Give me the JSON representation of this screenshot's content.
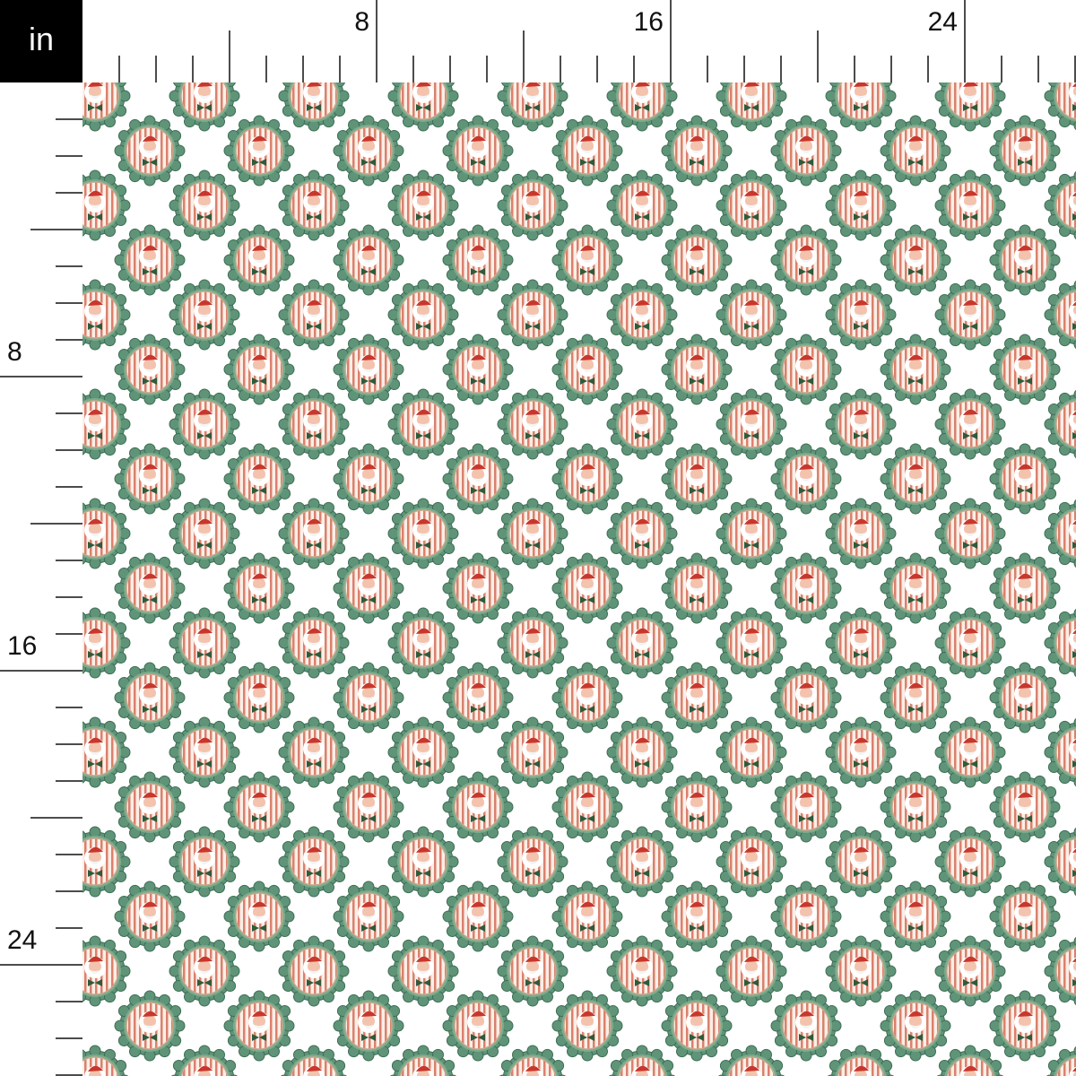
{
  "ruler": {
    "unit": "in",
    "top_labels": [
      "8",
      "16",
      "24"
    ],
    "left_labels": [
      "8",
      "16",
      "24"
    ]
  }
}
